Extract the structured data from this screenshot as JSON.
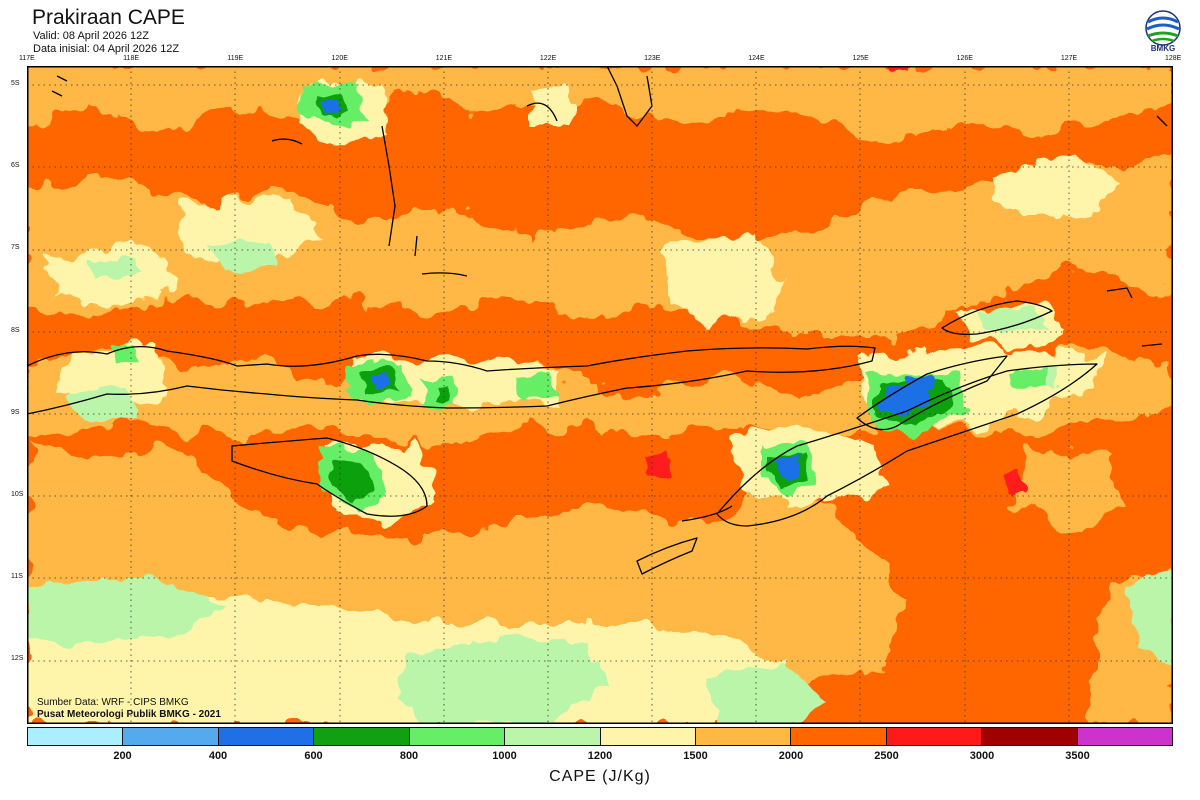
{
  "title": "Prakiraan CAPE",
  "valid": "Valid: 08 April 2026 12Z",
  "init": "Data inisial: 04 April 2026 12Z",
  "logo_text": "BMKG",
  "source": "Sumber Data: WRF - CIPS BMKG",
  "publisher": "Pusat Meteorologi Publik BMKG - 2021",
  "lon_ticks": [
    "117E",
    "118E",
    "119E",
    "120E",
    "121E",
    "122E",
    "123E",
    "124E",
    "125E",
    "126E",
    "127E",
    "128E"
  ],
  "lat_ticks": [
    "5S",
    "6S",
    "7S",
    "8S",
    "9S",
    "10S",
    "11S",
    "12S"
  ],
  "colorbar": {
    "label": "CAPE (J/Kg)",
    "levels": [
      "200",
      "400",
      "600",
      "800",
      "1000",
      "1200",
      "1500",
      "2000",
      "2500",
      "3000",
      "3500"
    ],
    "colors": [
      "#aaeeff",
      "#55aaee",
      "#1f6fe6",
      "#11a011",
      "#66ee66",
      "#bbf5aa",
      "#fff5aa",
      "#ffb844",
      "#ff6600",
      "#ff1a1a",
      "#a00000",
      "#cc33cc"
    ]
  },
  "colors": {
    "background_field": "#ff6600",
    "land_outline": "#000000"
  }
}
